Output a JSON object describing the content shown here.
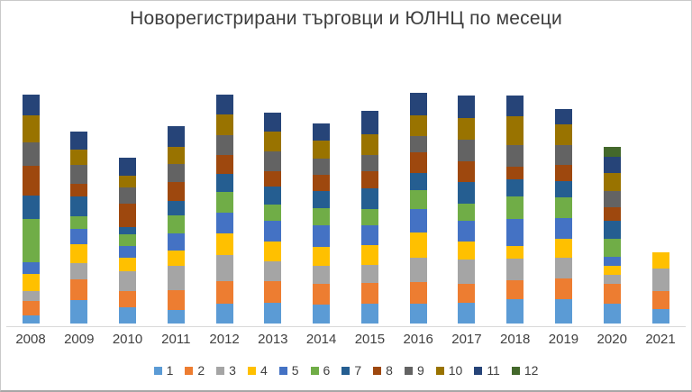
{
  "title": "Новорегистрирани търговци и ЮЛНЦ по месеци",
  "chart_data": {
    "type": "bar",
    "stacked": true,
    "title": "Новорегистрирани търговци и ЮЛНЦ по месеци",
    "xlabel": "",
    "ylabel": "",
    "value_axis_visible": false,
    "grid": false,
    "legend_position": "bottom",
    "categories": [
      "2008",
      "2009",
      "2010",
      "2011",
      "2012",
      "2013",
      "2014",
      "2015",
      "2016",
      "2017",
      "2018",
      "2019",
      "2020",
      "2021"
    ],
    "series": [
      {
        "name": "1",
        "color": "#5B9BD5",
        "values": [
          9,
          26,
          18,
          15,
          22,
          23,
          21,
          22,
          22,
          23,
          27,
          27,
          22,
          16
        ]
      },
      {
        "name": "2",
        "color": "#ED7D31",
        "values": [
          16,
          23,
          18,
          22,
          25,
          24,
          23,
          23,
          24,
          21,
          21,
          23,
          22,
          20
        ]
      },
      {
        "name": "3",
        "color": "#A5A5A5",
        "values": [
          11,
          18,
          22,
          27,
          29,
          22,
          20,
          20,
          27,
          27,
          24,
          23,
          10,
          25
        ]
      },
      {
        "name": "4",
        "color": "#FFC000",
        "values": [
          19,
          21,
          15,
          17,
          24,
          22,
          21,
          22,
          28,
          20,
          14,
          21,
          10,
          18
        ]
      },
      {
        "name": "5",
        "color": "#4472C4",
        "values": [
          13,
          17,
          13,
          19,
          23,
          23,
          24,
          22,
          26,
          23,
          30,
          23,
          10,
          0
        ]
      },
      {
        "name": "6",
        "color": "#70AD47",
        "values": [
          48,
          14,
          13,
          20,
          23,
          18,
          19,
          18,
          21,
          19,
          25,
          23,
          20,
          0
        ]
      },
      {
        "name": "7",
        "color": "#255E91",
        "values": [
          26,
          22,
          8,
          16,
          20,
          20,
          19,
          23,
          19,
          24,
          19,
          18,
          20,
          0
        ]
      },
      {
        "name": "8",
        "color": "#9E480E",
        "values": [
          33,
          14,
          26,
          21,
          21,
          17,
          18,
          19,
          23,
          23,
          14,
          18,
          15,
          0
        ]
      },
      {
        "name": "9",
        "color": "#636363",
        "values": [
          26,
          21,
          18,
          20,
          22,
          22,
          18,
          18,
          18,
          24,
          24,
          22,
          18,
          0
        ]
      },
      {
        "name": "10",
        "color": "#997300",
        "values": [
          30,
          17,
          13,
          19,
          23,
          22,
          20,
          23,
          23,
          24,
          32,
          23,
          20,
          0
        ]
      },
      {
        "name": "11",
        "color": "#264478",
        "values": [
          23,
          20,
          20,
          23,
          22,
          21,
          19,
          26,
          25,
          25,
          23,
          17,
          18,
          0
        ]
      },
      {
        "name": "12",
        "color": "#43682B",
        "values": [
          0,
          0,
          0,
          0,
          0,
          0,
          0,
          0,
          0,
          0,
          0,
          0,
          11,
          0
        ]
      }
    ]
  },
  "colors": {
    "background": "#FFFFFF",
    "border": "#C9C9C9",
    "axis_line": "#D9D9D9",
    "label_text": "#404040",
    "title_text": "#3D3D3D"
  }
}
